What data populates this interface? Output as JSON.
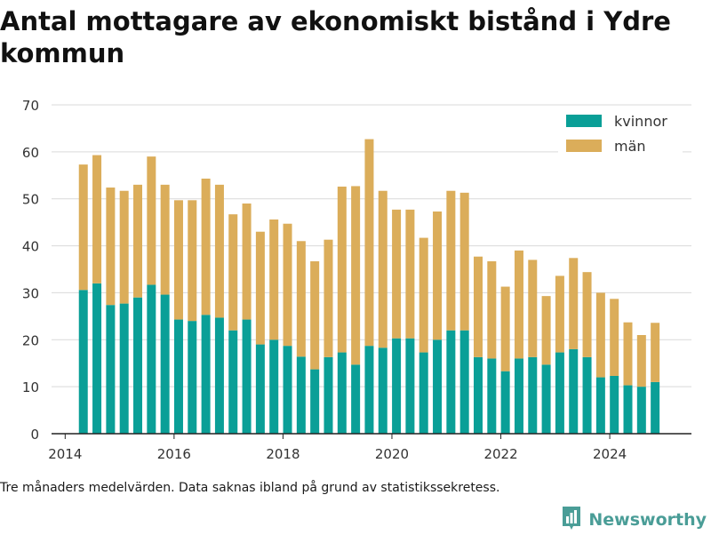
{
  "title": "Antal mottagare av ekonomiskt bistånd i Ydre kommun",
  "footnote": "Tre månaders medelvärden. Data saknas ibland på grund av statistikssekretess.",
  "brand": {
    "name": "Newsworthy",
    "icon": "bar-chart-logo-icon"
  },
  "colors": {
    "kvinnor": "#0a9f97",
    "man": "#dbad5a",
    "axis": "#222222",
    "grid": "#d9d9d9"
  },
  "chart_data": {
    "type": "bar",
    "stacked": true,
    "grid": true,
    "legend_position": "top-right",
    "ylim": [
      0,
      70
    ],
    "yticks": [
      0,
      10,
      20,
      30,
      40,
      50,
      60,
      70
    ],
    "xlim": [
      "2013-10-01",
      "2025-07-01"
    ],
    "xticks": [
      "2014",
      "2016",
      "2018",
      "2020",
      "2022",
      "2024"
    ],
    "x": [
      "2014-05",
      "2014-08",
      "2014-11",
      "2015-02",
      "2015-05",
      "2015-08",
      "2015-11",
      "2016-02",
      "2016-05",
      "2016-08",
      "2016-11",
      "2017-02",
      "2017-05",
      "2017-08",
      "2017-11",
      "2018-02",
      "2018-05",
      "2018-08",
      "2018-11",
      "2019-02",
      "2019-05",
      "2019-08",
      "2019-11",
      "2020-02",
      "2020-05",
      "2020-08",
      "2020-11",
      "2021-02",
      "2021-05",
      "2021-08",
      "2021-11",
      "2022-02",
      "2022-05",
      "2022-08",
      "2022-11",
      "2023-02",
      "2023-05",
      "2023-08",
      "2023-11",
      "2024-02",
      "2024-05",
      "2024-08",
      "2024-11"
    ],
    "series": [
      {
        "name": "kvinnor",
        "values": [
          30.6,
          32,
          27.4,
          27.7,
          29,
          31.7,
          29.6,
          24.3,
          24,
          25.3,
          24.7,
          22,
          24.3,
          19,
          20,
          18.7,
          16.4,
          13.7,
          16.3,
          17.3,
          14.7,
          18.7,
          18.3,
          20.3,
          20.3,
          17.3,
          20,
          22,
          22,
          16.3,
          16,
          13.3,
          16,
          16.3,
          14.7,
          17.3,
          18,
          16.3,
          12,
          12.3,
          10.3,
          10,
          11
        ]
      },
      {
        "name": "män",
        "values": [
          26.7,
          27.3,
          25,
          24,
          24,
          27.3,
          23.4,
          25.4,
          25.7,
          29,
          28.3,
          24.7,
          24.7,
          24,
          25.6,
          26,
          24.6,
          23,
          25,
          35.3,
          38,
          44,
          33.4,
          27.4,
          27.4,
          24.4,
          27.3,
          29.7,
          29.3,
          21.4,
          20.7,
          18,
          23,
          20.7,
          14.6,
          16.3,
          19.4,
          18.1,
          18,
          16.4,
          13.4,
          11,
          12.6
        ]
      }
    ]
  }
}
